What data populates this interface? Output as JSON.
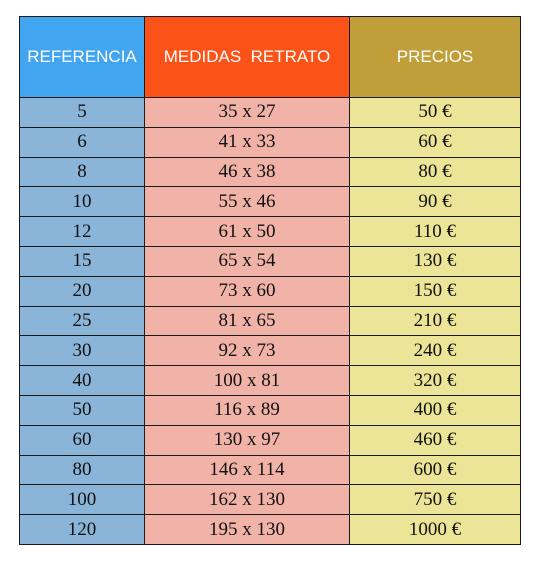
{
  "table": {
    "headers": [
      "REFERENCIA",
      "MEDIDAS  RETRATO",
      "PRECIOS"
    ],
    "header_colors": [
      "#42a5f0",
      "#fb5218",
      "#c09f3a"
    ],
    "body_colors": [
      "#8ab4d8",
      "#f1b3a7",
      "#ece497"
    ],
    "rows": [
      [
        "5",
        "35 x 27",
        "50 €"
      ],
      [
        "6",
        "41 x 33",
        "60 €"
      ],
      [
        "8",
        "46 x 38",
        "80 €"
      ],
      [
        "10",
        "55 x 46",
        "90 €"
      ],
      [
        "12",
        "61 x 50",
        "110 €"
      ],
      [
        "15",
        "65 x 54",
        "130 €"
      ],
      [
        "20",
        "73 x 60",
        "150 €"
      ],
      [
        "25",
        "81 x 65",
        "210 €"
      ],
      [
        "30",
        "92 x 73",
        "240 €"
      ],
      [
        "40",
        "100 x 81",
        "320 €"
      ],
      [
        "50",
        "116 x 89",
        "400 €"
      ],
      [
        "60",
        "130 x 97",
        "460 €"
      ],
      [
        "80",
        "146 x 114",
        "600 €"
      ],
      [
        "100",
        "162 x 130",
        "750 €"
      ],
      [
        "120",
        "195 x 130",
        "1000 €"
      ]
    ]
  }
}
